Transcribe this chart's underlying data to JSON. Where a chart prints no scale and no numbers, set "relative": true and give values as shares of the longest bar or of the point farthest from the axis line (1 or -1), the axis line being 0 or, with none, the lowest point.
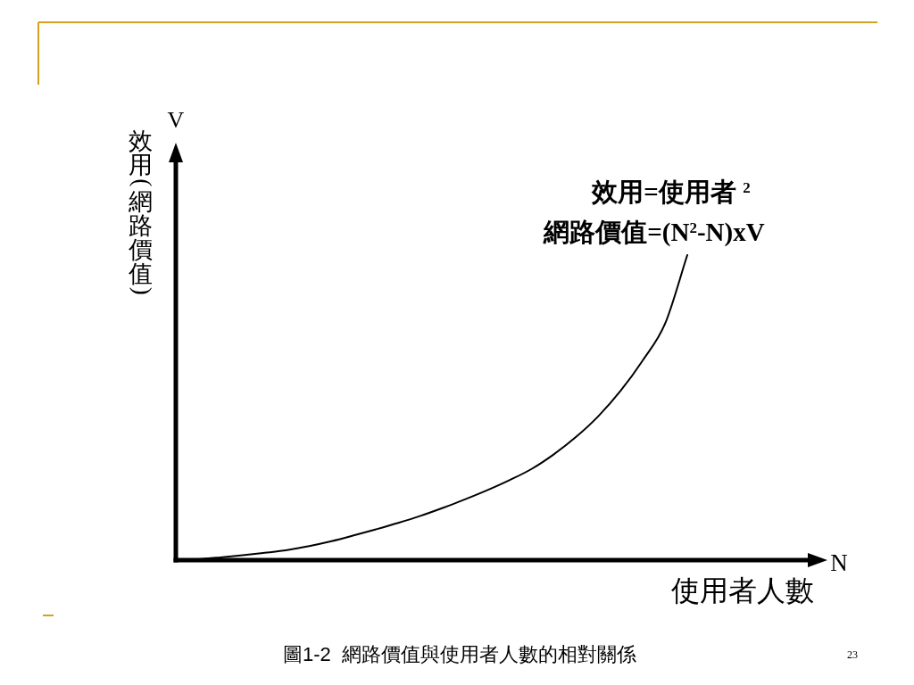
{
  "chart_data": {
    "type": "line",
    "relative": true,
    "categories": [
      null,
      null,
      null,
      null,
      null,
      null,
      null,
      null,
      null,
      null,
      null,
      null,
      null,
      null,
      null,
      null,
      null,
      null,
      null,
      null,
      null,
      null,
      null,
      null
    ],
    "series": [
      {
        "color": "#000000",
        "values": [
          0,
          0.003,
          0.009,
          0.016,
          0.024,
          0.033,
          0.046,
          0.062,
          0.081,
          0.101,
          0.122,
          0.145,
          0.171,
          0.199,
          0.229,
          0.262,
          0.299,
          0.347,
          0.404,
          0.472,
          0.555,
          0.655,
          0.775,
          1
        ]
      }
    ],
    "xlabel": "使用者人數",
    "ylabel": "效用(網路價值)",
    "annotations": [
      "V",
      "N",
      "效用=使用者 $^{2}$",
      "網路價值=(N$^{2}$-N)xV",
      "圖1-2  網路價值與使用者人數的相對關係",
      "23"
    ]
  }
}
